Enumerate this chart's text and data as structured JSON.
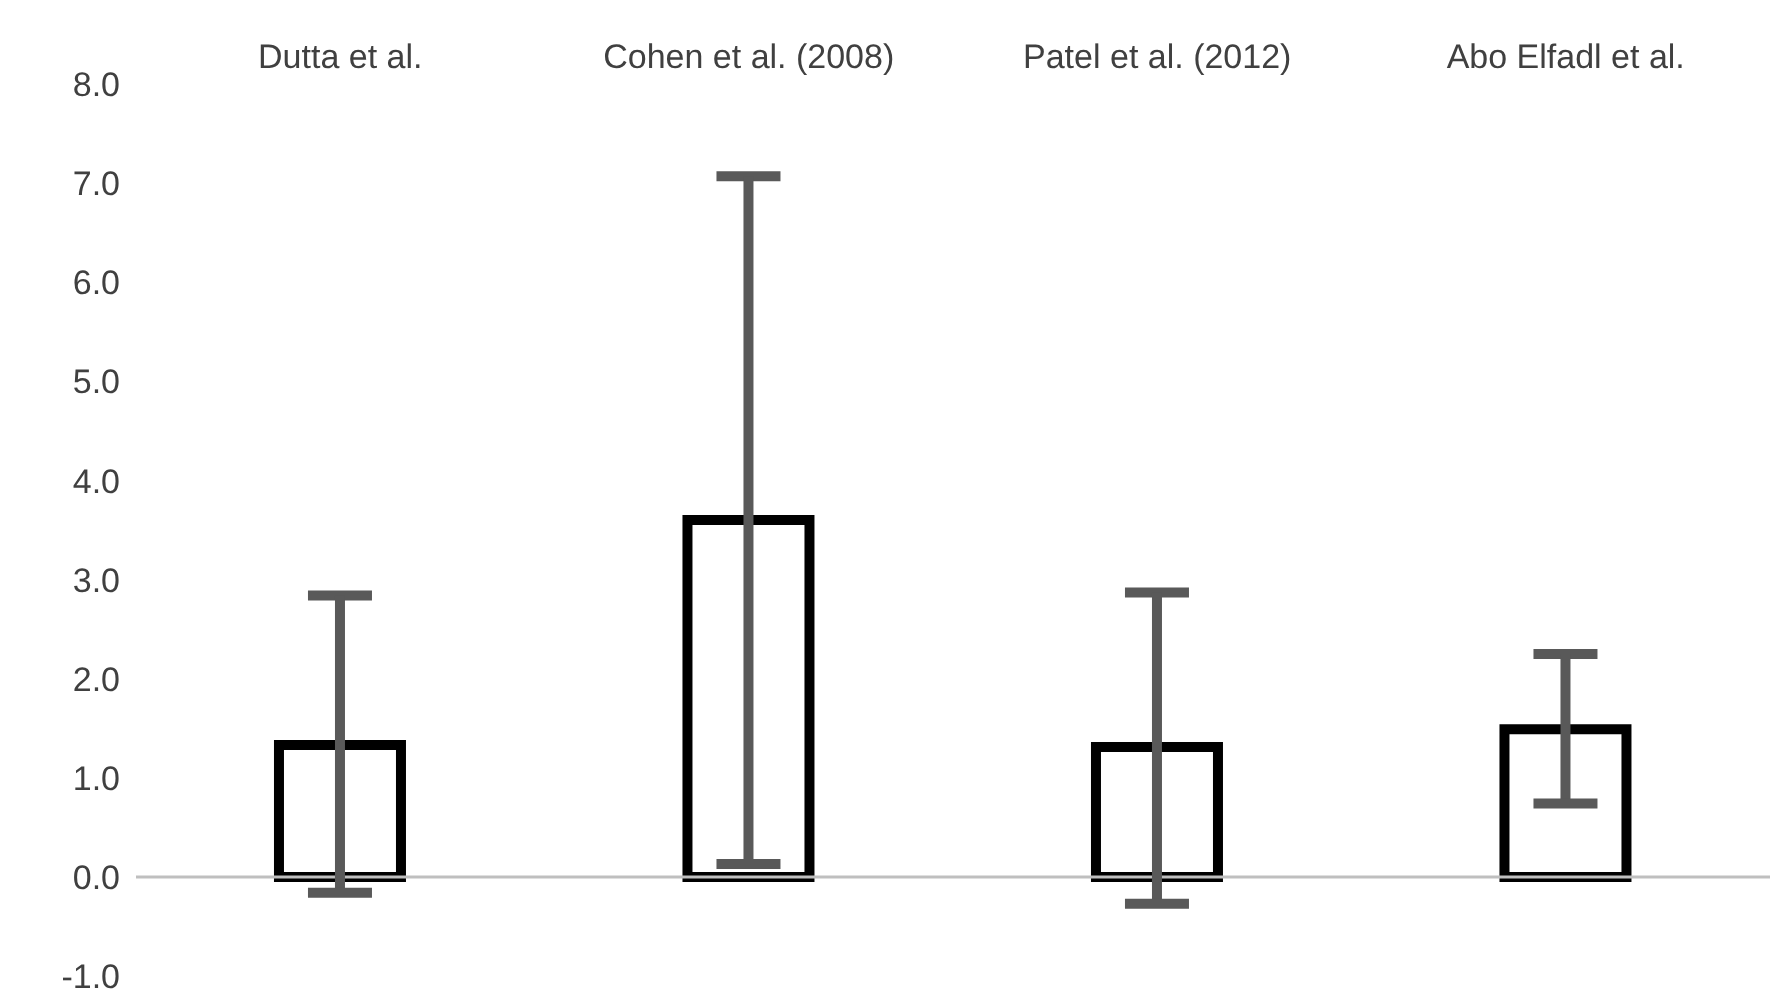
{
  "chart_data": {
    "type": "bar",
    "categories": [
      "Dutta et al.",
      "Cohen et al. (2008)",
      "Patel et al. (2012)",
      "Abo Elfadl et al."
    ],
    "values": [
      1.33,
      3.6,
      1.31,
      1.49
    ],
    "errors": [
      [
        -0.16,
        2.84
      ],
      [
        0.13,
        7.07
      ],
      [
        -0.27,
        2.87
      ],
      [
        0.74,
        2.25
      ]
    ],
    "color": "#ffffff",
    "ylim": [
      -1,
      8
    ],
    "yticks": [
      {
        "value": -1,
        "label": "-1.0"
      },
      {
        "value": 0,
        "label": "0.0"
      },
      {
        "value": 1,
        "label": "1.0"
      },
      {
        "value": 2,
        "label": "2.0"
      },
      {
        "value": 3,
        "label": "3.0"
      },
      {
        "value": 4,
        "label": "4.0"
      },
      {
        "value": 5,
        "label": "5.0"
      },
      {
        "value": 6,
        "label": "6.0"
      },
      {
        "value": 7,
        "label": "7.0"
      },
      {
        "value": 8,
        "label": "8.0"
      }
    ],
    "grid": false,
    "legend": false
  }
}
